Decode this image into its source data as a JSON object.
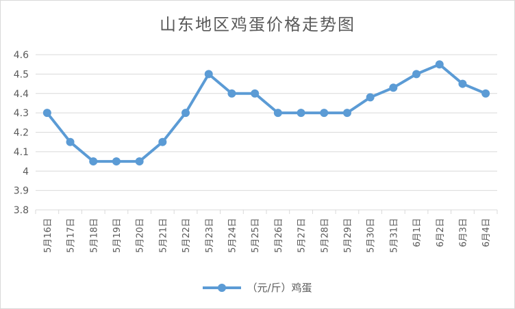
{
  "chart_data": {
    "type": "line",
    "title": "山东地区鸡蛋价格走势图",
    "categories": [
      "5月16日",
      "5月17日",
      "5月18日",
      "5月19日",
      "5月20日",
      "5月21日",
      "5月22日",
      "5月23日",
      "5月24日",
      "5月25日",
      "5月26日",
      "5月27日",
      "5月28日",
      "5月29日",
      "5月30日",
      "5月31日",
      "6月1日",
      "6月2日",
      "6月3日",
      "6月4日"
    ],
    "series": [
      {
        "name": "（元/斤）鸡蛋",
        "color": "#5b9bd5",
        "values": [
          4.3,
          4.15,
          4.05,
          4.05,
          4.05,
          4.15,
          4.3,
          4.5,
          4.4,
          4.4,
          4.3,
          4.3,
          4.3,
          4.3,
          4.38,
          4.43,
          4.5,
          4.55,
          4.45,
          4.4
        ]
      }
    ],
    "yticks": [
      "3.8",
      "3.9",
      "4",
      "4.1",
      "4.2",
      "4.3",
      "4.4",
      "4.5",
      "4.6"
    ],
    "ylim": [
      3.8,
      4.6
    ],
    "grid": true,
    "legend": "bottom"
  }
}
